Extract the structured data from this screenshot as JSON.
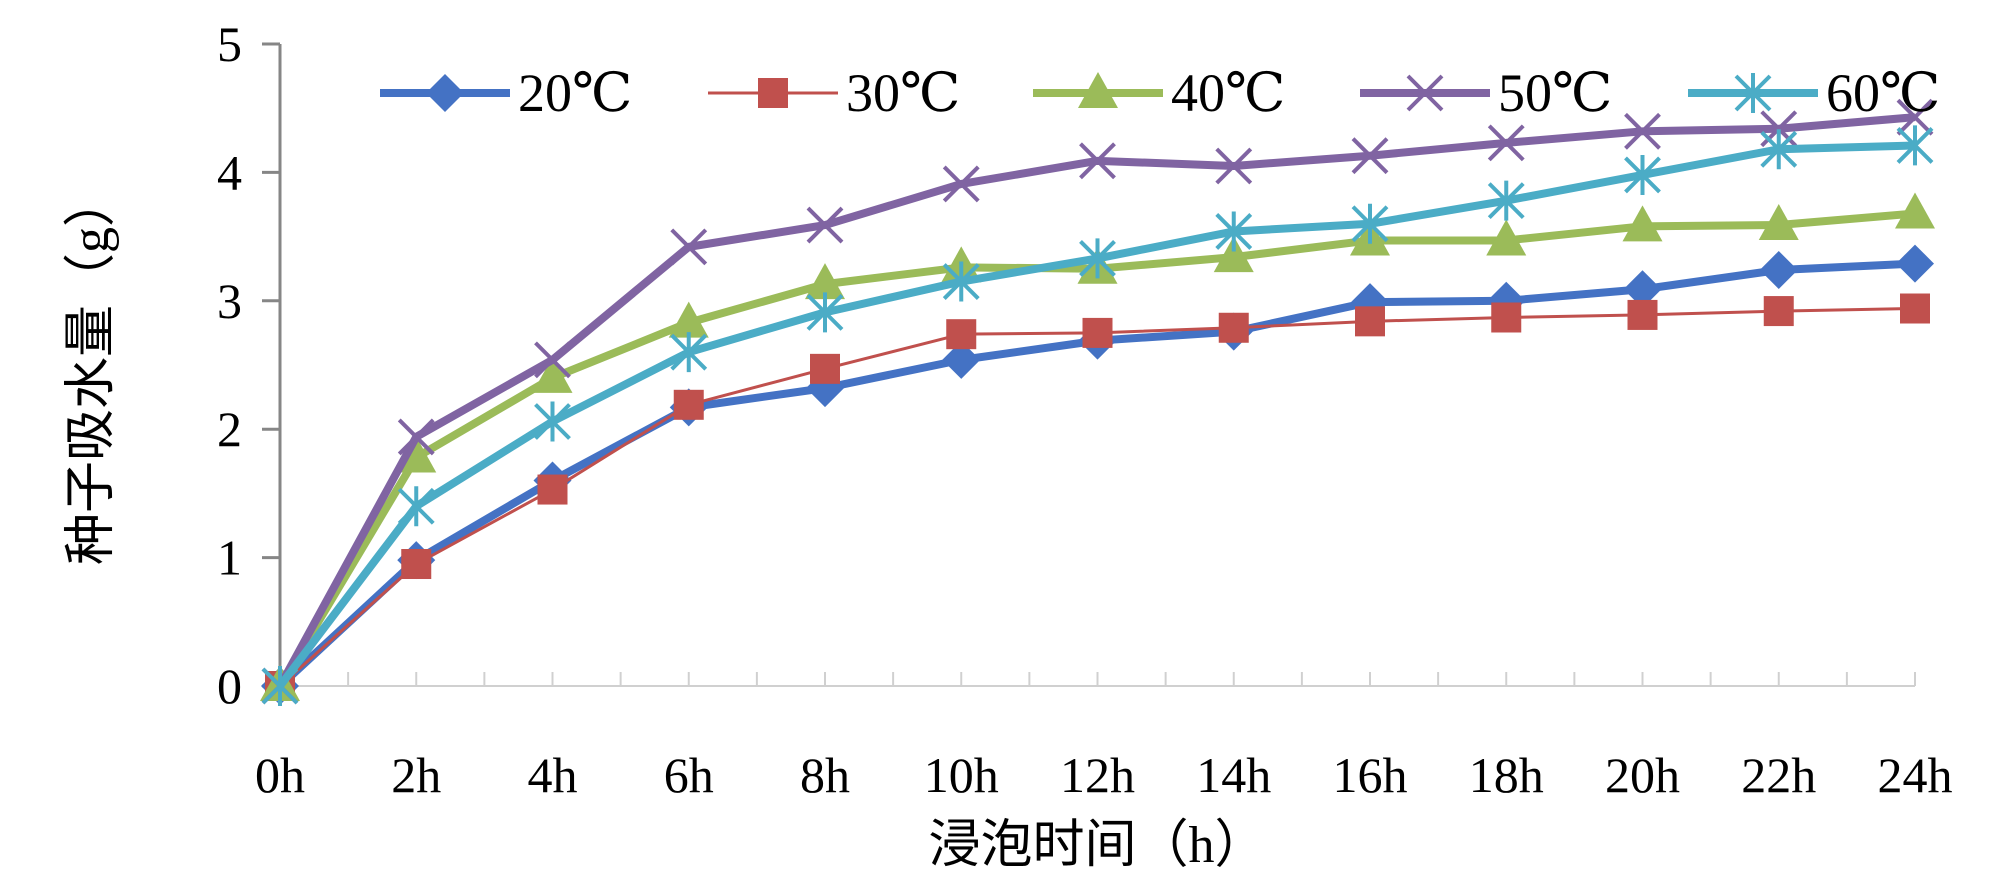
{
  "chart_data": {
    "type": "line",
    "title": "",
    "xlabel": "浸泡时间（h）",
    "ylabel": "种子吸水量（g）",
    "categories": [
      "0h",
      "2h",
      "4h",
      "6h",
      "8h",
      "10h",
      "12h",
      "14h",
      "16h",
      "18h",
      "20h",
      "22h",
      "24h"
    ],
    "ylim": [
      0,
      5
    ],
    "yticks": [
      "0",
      "1",
      "2",
      "3",
      "4",
      "5"
    ],
    "grid": false,
    "legend_position": "top",
    "series": [
      {
        "name": "20℃",
        "color": "#4472C4",
        "marker": "diamond",
        "values": [
          0,
          0.98,
          1.6,
          2.17,
          2.32,
          2.54,
          2.69,
          2.76,
          2.99,
          3.0,
          3.09,
          3.24,
          3.29
        ]
      },
      {
        "name": "30℃",
        "color": "#C0504D",
        "marker": "square",
        "values": [
          0,
          0.95,
          1.53,
          2.19,
          2.47,
          2.74,
          2.75,
          2.79,
          2.84,
          2.87,
          2.89,
          2.92,
          2.94
        ]
      },
      {
        "name": "40℃",
        "color": "#9BBB59",
        "marker": "triangle",
        "values": [
          0,
          1.78,
          2.4,
          2.83,
          3.13,
          3.26,
          3.25,
          3.34,
          3.47,
          3.47,
          3.58,
          3.59,
          3.68
        ]
      },
      {
        "name": "50℃",
        "color": "#8064A2",
        "marker": "x",
        "values": [
          0,
          1.94,
          2.54,
          3.42,
          3.59,
          3.91,
          4.09,
          4.05,
          4.13,
          4.23,
          4.32,
          4.34,
          4.43
        ]
      },
      {
        "name": "60℃",
        "color": "#4BACC6",
        "marker": "asterisk",
        "values": [
          0,
          1.4,
          2.06,
          2.6,
          2.91,
          3.15,
          3.33,
          3.54,
          3.6,
          3.78,
          3.98,
          4.18,
          4.21
        ]
      }
    ]
  }
}
